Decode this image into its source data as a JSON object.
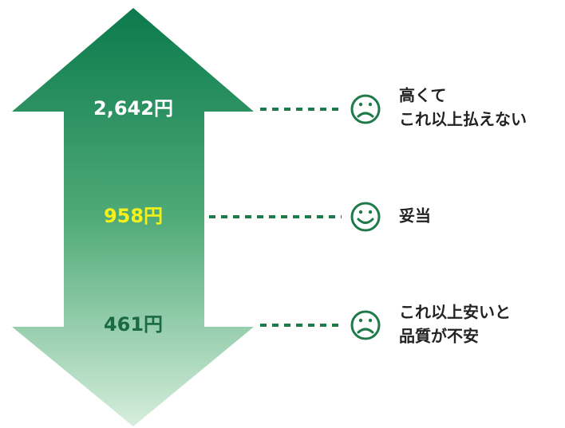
{
  "levels": [
    {
      "price": "2,642円",
      "lines": [
        "高くて",
        "これ以上払えない"
      ]
    },
    {
      "price": "958円",
      "lines": [
        "妥当"
      ]
    },
    {
      "price": "461円",
      "lines": [
        "これ以上安いと",
        "品質が不安"
      ]
    }
  ]
}
